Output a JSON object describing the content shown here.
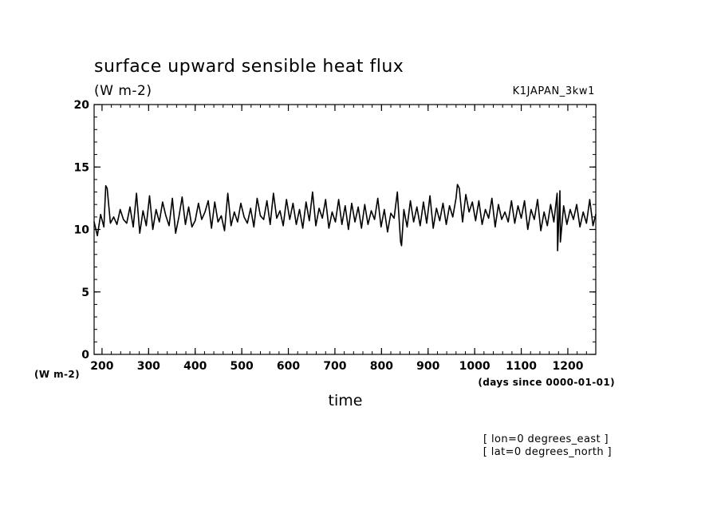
{
  "chart_data": {
    "type": "line",
    "title": "surface upward sensible heat flux",
    "subtitle": "(W m-2)",
    "dataset": "K1JAPAN_3kw1",
    "xlabel": "time",
    "x_units": "(days since 0000-01-01)",
    "y_units": "(W m-2)",
    "xlim": [
      183,
      1260
    ],
    "ylim": [
      0,
      20
    ],
    "x_major_ticks": [
      200,
      300,
      400,
      500,
      600,
      700,
      800,
      900,
      1000,
      1100,
      1200
    ],
    "x_tick_labels": [
      "200",
      "300",
      "400",
      "500",
      "600",
      "700",
      "800",
      "900",
      "1000",
      "1100",
      "1200"
    ],
    "x_minor_step": 20,
    "y_major_ticks": [
      0,
      5,
      10,
      15,
      20
    ],
    "y_tick_labels": [
      "0",
      "5",
      "10",
      "15",
      "20"
    ],
    "y_minor_step": 1,
    "grid": false,
    "legend": "none",
    "notes": [
      "[ lon=0 degrees_east ]",
      "[ lat=0 degrees_north ]"
    ],
    "series": [
      {
        "line_color": "#000000",
        "x": [
          183,
          190,
          197,
          204,
          211,
          218,
          225,
          232,
          239,
          246,
          253,
          260,
          267,
          274,
          281,
          288,
          295,
          302,
          309,
          316,
          323,
          330,
          337,
          344,
          351,
          358,
          365,
          372,
          379,
          386,
          393,
          400,
          407,
          414,
          421,
          428,
          435,
          442,
          449,
          456,
          463,
          470,
          477,
          484,
          491,
          498,
          505,
          512,
          519,
          526,
          533,
          540,
          547,
          554,
          561,
          568,
          575,
          582,
          589,
          596,
          603,
          610,
          617,
          624,
          631,
          638,
          645,
          652,
          659,
          666,
          673,
          680,
          687,
          694,
          701,
          708,
          715,
          722,
          729,
          736,
          743,
          750,
          757,
          764,
          771,
          778,
          785,
          792,
          799,
          806,
          813,
          820,
          827,
          834,
          841,
          848,
          855,
          862,
          869,
          876,
          883,
          890,
          897,
          904,
          911,
          918,
          925,
          932,
          939,
          946,
          953,
          960,
          967,
          974,
          981,
          988,
          995,
          1002,
          1009,
          1016,
          1023,
          1030,
          1037,
          1044,
          1051,
          1058,
          1065,
          1072,
          1079,
          1086,
          1093,
          1100,
          1107,
          1114,
          1121,
          1128,
          1135,
          1142,
          1149,
          1156,
          1163,
          1170,
          1177,
          1184,
          1191,
          1198,
          1205,
          1212,
          1219,
          1226,
          1233,
          1240,
          1247,
          1254,
          1260
        ],
        "y": [
          10.6,
          9.5,
          11.2,
          10.2,
          13.3,
          10.5,
          11.0,
          10.4,
          11.6,
          10.8,
          10.5,
          11.8,
          10.2,
          12.9,
          9.7,
          11.5,
          10.3,
          12.7,
          10.0,
          11.6,
          10.6,
          12.2,
          11.1,
          10.3,
          12.5,
          9.7,
          11.0,
          12.6,
          10.4,
          11.8,
          10.2,
          10.7,
          12.1,
          10.8,
          11.4,
          12.3,
          10.1,
          12.2,
          10.6,
          11.1,
          9.9,
          12.9,
          10.3,
          11.4,
          10.6,
          12.1,
          11.0,
          10.5,
          11.7,
          10.2,
          12.5,
          11.1,
          10.8,
          12.3,
          10.4,
          12.9,
          10.9,
          11.5,
          10.3,
          12.4,
          10.8,
          12.1,
          10.4,
          11.6,
          10.1,
          12.2,
          10.7,
          13.0,
          10.3,
          11.7,
          10.9,
          12.4,
          10.1,
          11.4,
          10.6,
          12.4,
          10.4,
          11.9,
          10.0,
          12.1,
          10.6,
          11.8,
          10.1,
          12.0,
          10.4,
          11.5,
          10.8,
          12.5,
          10.2,
          11.6,
          9.8,
          11.3,
          10.9,
          13.0,
          9.0,
          11.6,
          10.2,
          12.3,
          10.6,
          11.8,
          10.3,
          12.2,
          10.5,
          12.7,
          10.1,
          11.7,
          10.7,
          12.1,
          10.4,
          11.9,
          11.0,
          12.5,
          13.3,
          10.6,
          12.8,
          11.4,
          12.2,
          10.7,
          12.3,
          10.4,
          11.6,
          10.9,
          12.5,
          10.2,
          12.0,
          10.8,
          11.4,
          10.6,
          12.3,
          10.5,
          11.9,
          10.9,
          12.3,
          10.0,
          11.6,
          10.8,
          12.4,
          9.9,
          11.4,
          10.3,
          12.0,
          10.6,
          12.9,
          9.0,
          11.9,
          10.4,
          11.6,
          10.8,
          12.0,
          10.2,
          11.4,
          10.5,
          12.4,
          10.3,
          11.2
        ],
        "peaks_and_dips": [
          [
            208,
            13.5
          ],
          [
            843,
            8.7
          ],
          [
            963,
            13.6
          ],
          [
            1178,
            8.3
          ],
          [
            1183,
            13.1
          ]
        ]
      }
    ]
  }
}
